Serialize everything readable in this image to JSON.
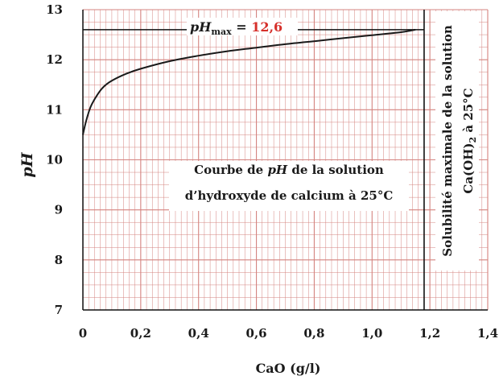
{
  "chart_data": {
    "type": "line",
    "xlabel": "CaO (g/l)",
    "ylabel": "pH",
    "xlim": [
      0,
      1.4
    ],
    "ylim": [
      7,
      13
    ],
    "x_ticks": [
      "0",
      "0,2",
      "0,4",
      "0,6",
      "0,8",
      "1,0",
      "1,2",
      "1,4"
    ],
    "y_ticks": [
      "7",
      "8",
      "9",
      "10",
      "11",
      "12",
      "13"
    ],
    "grid": true,
    "series": [
      {
        "x": [
          0.0,
          0.01,
          0.02,
          0.03,
          0.05,
          0.07,
          0.1,
          0.15,
          0.2,
          0.3,
          0.4,
          0.5,
          0.6,
          0.7,
          0.8,
          0.9,
          1.0,
          1.1,
          1.15
        ],
        "y": [
          10.5,
          10.75,
          10.95,
          11.1,
          11.3,
          11.45,
          11.58,
          11.72,
          11.82,
          11.97,
          12.08,
          12.17,
          12.24,
          12.31,
          12.37,
          12.43,
          12.49,
          12.55,
          12.6
        ]
      }
    ],
    "annotations": {
      "phmax_label": "pH",
      "phmax_sub": "max",
      "phmax_eq": " = ",
      "phmax_value": "12,6",
      "phmax_y": 12.6,
      "curve_title_line1_a": "Courbe de ",
      "curve_title_line1_b": "pH",
      "curve_title_line1_c": " de la solution",
      "curve_title_line2": "d’hydroxyde de calcium à 25°C",
      "solubility_x": 1.18,
      "solubility_line1": "Solubilité maximale de la solution",
      "solubility_line2_a": "Ca(OH)",
      "solubility_line2_sub": "2",
      "solubility_line2_b": " à 25°C"
    },
    "colors": {
      "grid": "#d4837f",
      "curve": "#1a1a1a",
      "axis": "#111111",
      "highlight": "#d6302b"
    }
  }
}
